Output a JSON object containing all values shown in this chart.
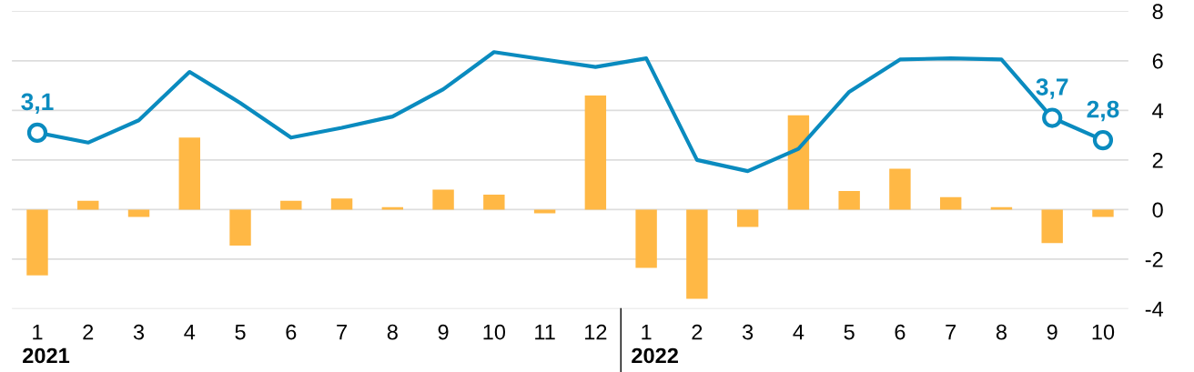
{
  "chart_data": {
    "type": "bar",
    "categories": [
      "1",
      "2",
      "3",
      "4",
      "5",
      "6",
      "7",
      "8",
      "9",
      "10",
      "11",
      "12",
      "1",
      "2",
      "3",
      "4",
      "5",
      "6",
      "7",
      "8",
      "9",
      "10"
    ],
    "series": [
      {
        "color": "#ffb845",
        "values": [
          -2.65,
          0.35,
          -0.3,
          2.9,
          -1.45,
          0.35,
          0.45,
          0.1,
          0.8,
          0.6,
          -0.15,
          4.6,
          -2.35,
          -3.6,
          -0.7,
          3.8,
          0.75,
          1.65,
          0.5,
          0.1,
          -1.35,
          -0.3
        ]
      },
      {
        "type": "line",
        "color": "#0a8bbf",
        "values": [
          3.1,
          2.7,
          3.6,
          5.55,
          4.3,
          2.9,
          3.3,
          3.75,
          4.85,
          6.35,
          6.05,
          5.75,
          6.1,
          2.0,
          1.55,
          2.45,
          4.75,
          6.05,
          6.1,
          6.05,
          3.7,
          2.8
        ],
        "value_labels": [
          "3,1",
          null,
          null,
          null,
          null,
          null,
          null,
          null,
          null,
          null,
          null,
          null,
          null,
          null,
          null,
          null,
          null,
          null,
          null,
          null,
          "3,7",
          "2,8"
        ]
      }
    ],
    "ylim": [
      -4,
      8
    ],
    "yticks": [
      -4,
      -2,
      0,
      2,
      4,
      6,
      8
    ],
    "grid": "y",
    "legend": false,
    "annotations": [
      "2021",
      "2022"
    ]
  }
}
